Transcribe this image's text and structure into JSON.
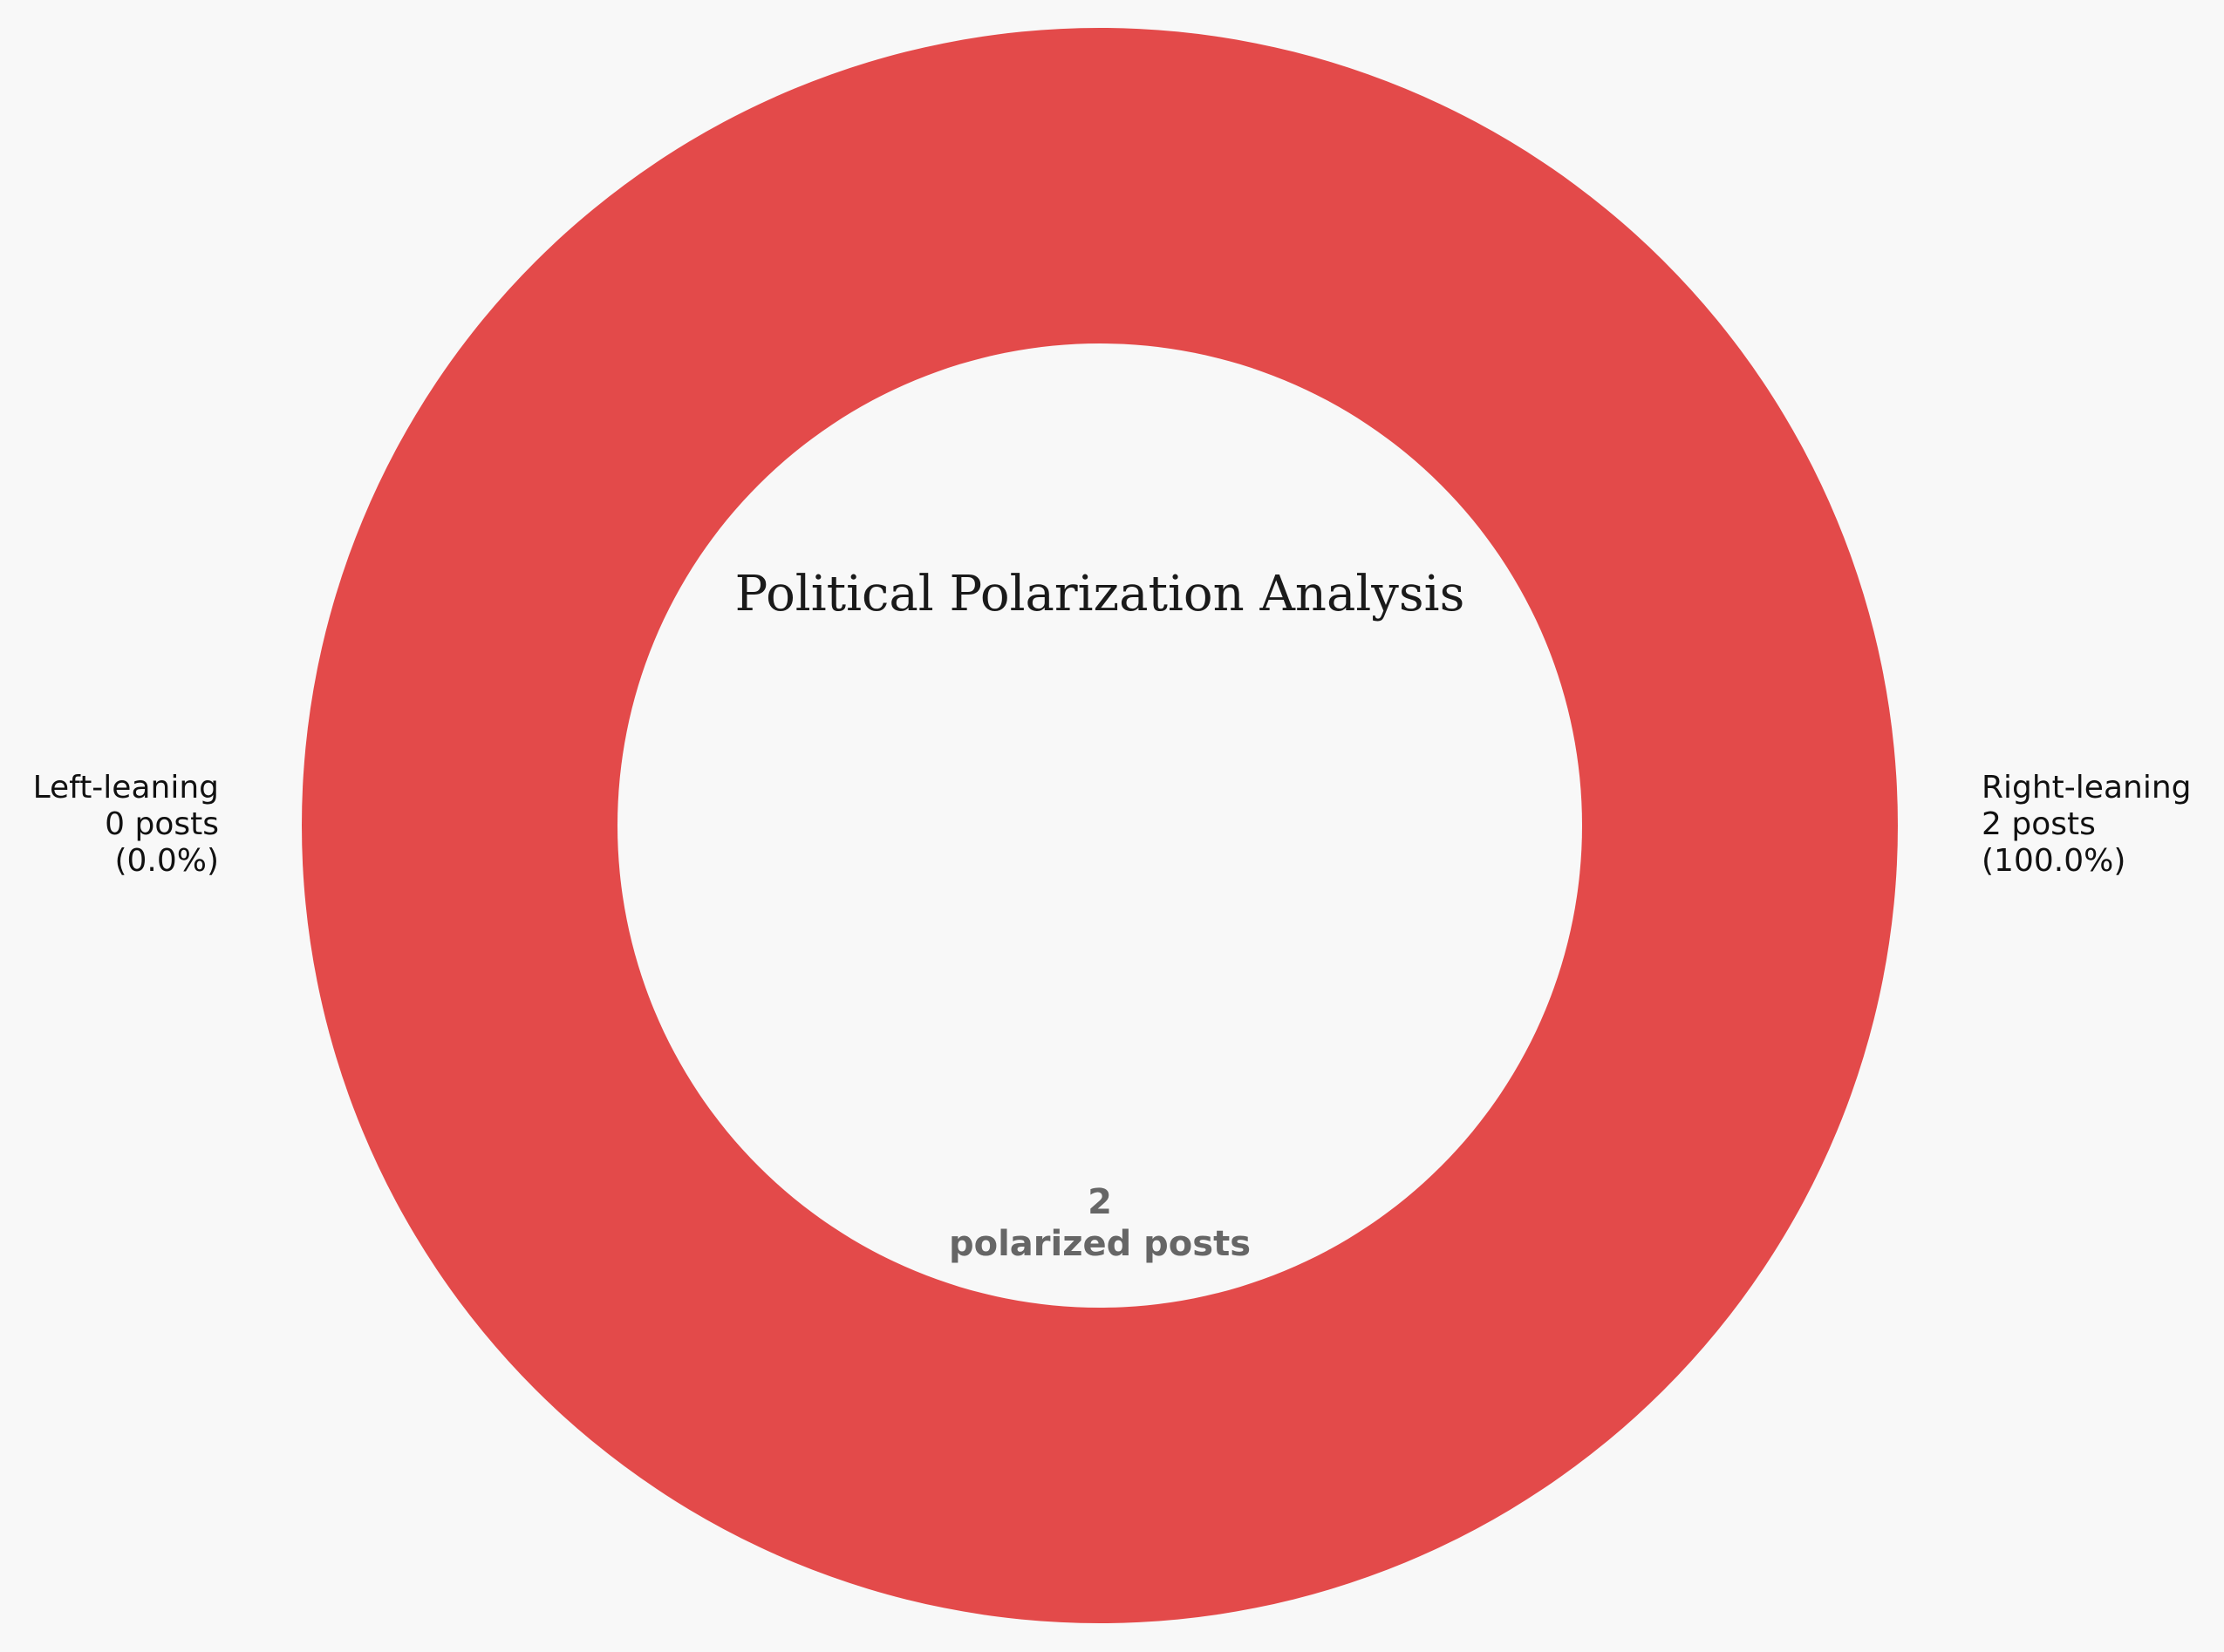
{
  "chart_data": {
    "type": "pie",
    "title": "Political Polarization Analysis",
    "categories": [
      "Left-leaning",
      "Right-leaning"
    ],
    "values": [
      0,
      2
    ],
    "colors": [
      "#3b7dd8",
      "#e34a4a"
    ],
    "slice_labels": [
      {
        "name": "Left-leaning",
        "count_text": "0 posts",
        "pct_text": "(0.0%)"
      },
      {
        "name": "Right-leaning",
        "count_text": "2 posts",
        "pct_text": "(100.0%)"
      }
    ],
    "center": {
      "total": "2",
      "caption": "polarized posts"
    }
  },
  "colors": {
    "background": "#f8f8f8",
    "center_text": "#666666"
  }
}
